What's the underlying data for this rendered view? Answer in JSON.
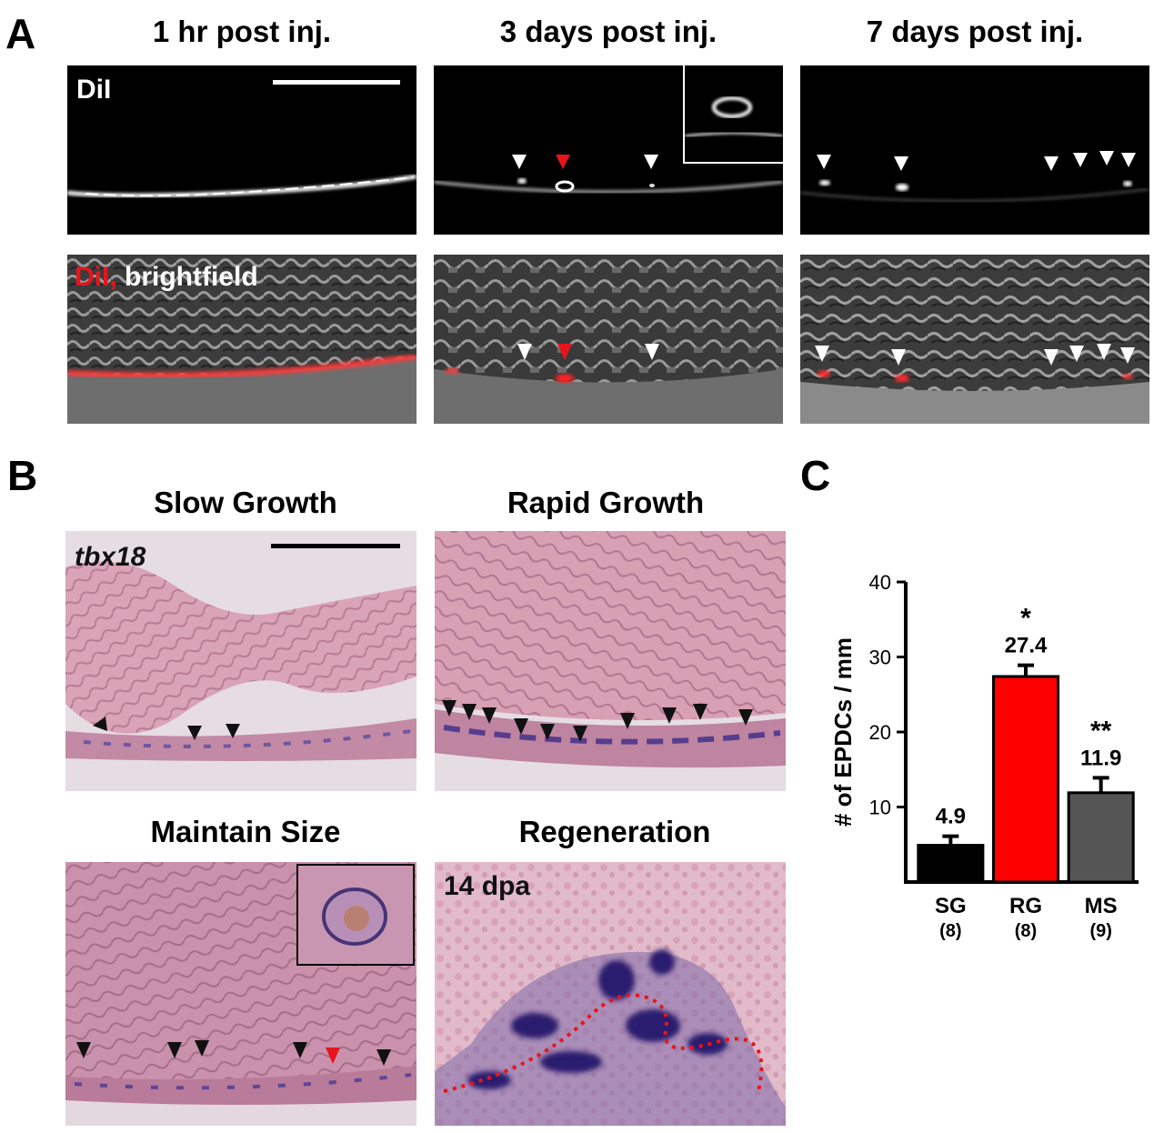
{
  "panel_a": {
    "letter": "A",
    "columns": [
      {
        "title": "1 hr post inj."
      },
      {
        "title": "3 days post inj."
      },
      {
        "title": "7 days post inj."
      }
    ],
    "label_dil": "DiI",
    "label_overlay_red": "DiI,",
    "label_overlay_white": " brightfield"
  },
  "panel_b": {
    "letter": "B",
    "panels": [
      {
        "title": "Slow Growth",
        "label": "tbx18"
      },
      {
        "title": "Rapid Growth",
        "label": ""
      },
      {
        "title": "Maintain Size",
        "label": ""
      },
      {
        "title": "Regeneration",
        "label": "14 dpa"
      }
    ]
  },
  "panel_c": {
    "letter": "C"
  },
  "colors": {
    "arrow_white": "#ffffff",
    "arrow_red": "#e8141c",
    "arrow_black": "#111111",
    "bar_sg": "#000000",
    "bar_rg": "#ff0000",
    "bar_ms": "#555555"
  },
  "chart_data": {
    "type": "bar",
    "categories": [
      "SG",
      "RG",
      "MS"
    ],
    "category_counts": [
      "(8)",
      "(8)",
      "(9)"
    ],
    "values": [
      4.9,
      27.4,
      11.9
    ],
    "errors": [
      1.2,
      1.5,
      2.0
    ],
    "value_labels": [
      "4.9",
      "27.4",
      "11.9"
    ],
    "significance": [
      "",
      "*",
      "**"
    ],
    "ylabel": "# of EPDCs / mm",
    "ylim": [
      0,
      40
    ],
    "yticks": [
      10,
      20,
      30,
      40
    ],
    "grid": false
  }
}
